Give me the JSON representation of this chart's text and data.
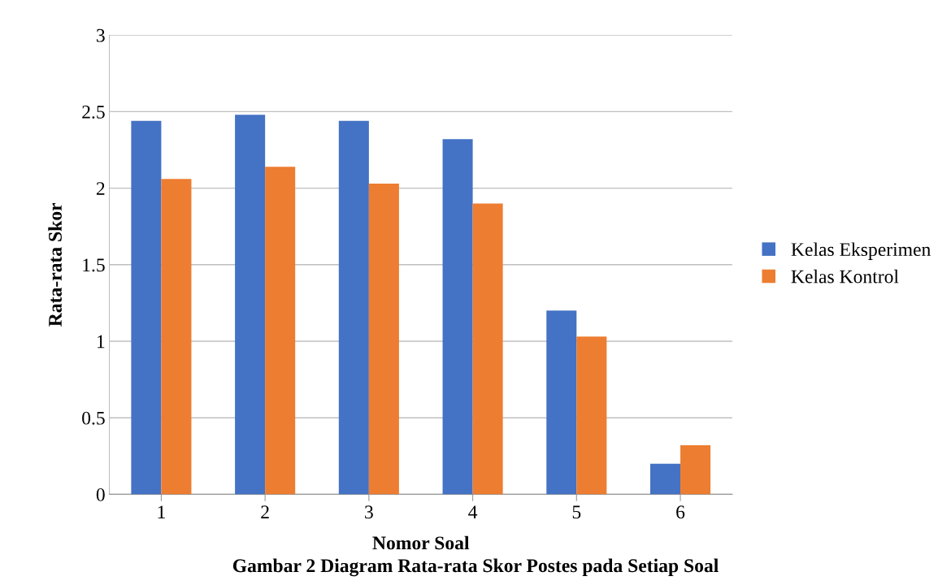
{
  "chart_data": {
    "type": "bar",
    "categories": [
      "1",
      "2",
      "3",
      "4",
      "5",
      "6"
    ],
    "series": [
      {
        "name": "Kelas Eksperimen",
        "color": "#4472c4",
        "values": [
          2.44,
          2.48,
          2.44,
          2.32,
          1.2,
          0.2
        ]
      },
      {
        "name": "Kelas Kontrol",
        "color": "#ed7d31",
        "values": [
          2.06,
          2.14,
          2.03,
          1.9,
          1.03,
          0.32
        ]
      }
    ],
    "xlabel": "Nomor Soal",
    "ylabel": "Rata-rata Skor",
    "ylim": [
      0,
      3
    ],
    "yticks": [
      0,
      0.5,
      1,
      1.5,
      2,
      2.5,
      3
    ],
    "grid": "y",
    "legend": "right",
    "annotations": [
      "Gambar 2 Diagram Rata-rata Skor Postes pada Setiap Soal"
    ]
  }
}
